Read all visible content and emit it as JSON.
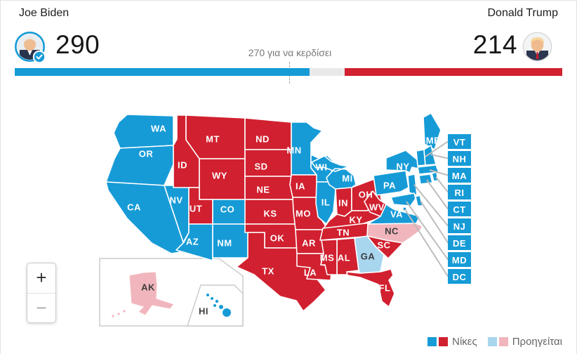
{
  "header": {
    "left_candidate": {
      "name": "Joe Biden",
      "votes": "290"
    },
    "right_candidate": {
      "name": "Donald Trump",
      "votes": "214"
    },
    "threshold_label": "270 για να κερδίσει",
    "bar": {
      "dem_votes": 290,
      "rep_votes": 214,
      "total": 538,
      "threshold": 270
    }
  },
  "colors": {
    "win_dem": "#169bd7",
    "win_rep": "#d1202f",
    "lead_dem": "#a8d6ef",
    "lead_rep": "#f1b6bd",
    "lead_text": "#3c3c3c",
    "win_text": "#ffffff"
  },
  "map": {
    "states": [
      {
        "code": "WA",
        "status": "win_dem"
      },
      {
        "code": "OR",
        "status": "win_dem"
      },
      {
        "code": "CA",
        "status": "win_dem"
      },
      {
        "code": "NV",
        "status": "win_dem"
      },
      {
        "code": "ID",
        "status": "win_rep"
      },
      {
        "code": "MT",
        "status": "win_rep"
      },
      {
        "code": "WY",
        "status": "win_rep"
      },
      {
        "code": "UT",
        "status": "win_rep"
      },
      {
        "code": "CO",
        "status": "win_dem"
      },
      {
        "code": "AZ",
        "status": "win_dem"
      },
      {
        "code": "NM",
        "status": "win_dem"
      },
      {
        "code": "ND",
        "status": "win_rep"
      },
      {
        "code": "SD",
        "status": "win_rep"
      },
      {
        "code": "NE",
        "status": "win_rep"
      },
      {
        "code": "KS",
        "status": "win_rep"
      },
      {
        "code": "OK",
        "status": "win_rep"
      },
      {
        "code": "TX",
        "status": "win_rep"
      },
      {
        "code": "MN",
        "status": "win_dem"
      },
      {
        "code": "IA",
        "status": "win_rep"
      },
      {
        "code": "MO",
        "status": "win_rep"
      },
      {
        "code": "AR",
        "status": "win_rep"
      },
      {
        "code": "LA",
        "status": "win_rep"
      },
      {
        "code": "WI",
        "status": "win_dem"
      },
      {
        "code": "IL",
        "status": "win_dem"
      },
      {
        "code": "MI",
        "status": "win_dem"
      },
      {
        "code": "IN",
        "status": "win_rep"
      },
      {
        "code": "OH",
        "status": "win_rep"
      },
      {
        "code": "KY",
        "status": "win_rep"
      },
      {
        "code": "TN",
        "status": "win_rep"
      },
      {
        "code": "WV",
        "status": "win_rep"
      },
      {
        "code": "VA",
        "status": "win_dem"
      },
      {
        "code": "NC",
        "status": "lead_rep"
      },
      {
        "code": "SC",
        "status": "win_rep"
      },
      {
        "code": "GA",
        "status": "lead_dem"
      },
      {
        "code": "AL",
        "status": "win_rep"
      },
      {
        "code": "MS",
        "status": "win_rep"
      },
      {
        "code": "FL",
        "status": "win_rep"
      },
      {
        "code": "PA",
        "status": "win_dem"
      },
      {
        "code": "NY",
        "status": "win_dem"
      },
      {
        "code": "ME",
        "status": "win_dem"
      },
      {
        "code": "VT",
        "status": "win_dem"
      },
      {
        "code": "NH",
        "status": "win_dem"
      },
      {
        "code": "MA",
        "status": "win_dem"
      },
      {
        "code": "RI",
        "status": "win_dem"
      },
      {
        "code": "CT",
        "status": "win_dem"
      },
      {
        "code": "NJ",
        "status": "win_dem"
      },
      {
        "code": "DE",
        "status": "win_dem"
      },
      {
        "code": "MD",
        "status": "win_dem"
      },
      {
        "code": "DC",
        "status": "win_dem"
      },
      {
        "code": "AK",
        "status": "lead_rep"
      },
      {
        "code": "HI",
        "status": "win_dem"
      }
    ],
    "callout_states": [
      "VT",
      "NH",
      "MA",
      "RI",
      "CT",
      "NJ",
      "DE",
      "MD",
      "DC"
    ]
  },
  "zoom_controls": {
    "zoom_in": "+",
    "zoom_out": "−"
  },
  "legend": [
    {
      "label": "Νίκες",
      "swatches": [
        "win_dem",
        "win_rep"
      ]
    },
    {
      "label": "Προηγείται",
      "swatches": [
        "lead_dem",
        "lead_rep"
      ]
    }
  ]
}
